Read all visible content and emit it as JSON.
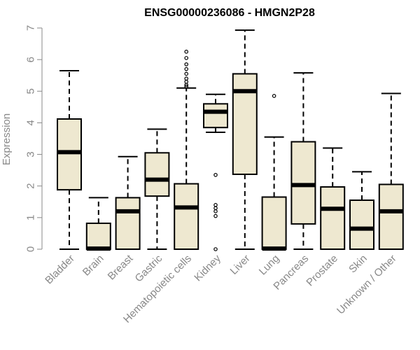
{
  "chart_data": {
    "type": "boxplot",
    "title": "ENSG00000236086 - HMGN2P28",
    "xlabel": "",
    "ylabel": "Expression",
    "ylim": [
      0,
      7
    ],
    "yticks": [
      "0",
      "1",
      "2",
      "3",
      "4",
      "5",
      "6",
      "7"
    ],
    "grid": false,
    "box_color": "#EEE8D0",
    "categories": [
      "Bladder",
      "Brain",
      "Breast",
      "Gastric",
      "Hematopoietic cells",
      "Kidney",
      "Liver",
      "Lung",
      "Pancreas",
      "Prostate",
      "Skin",
      "Unknown / Other"
    ],
    "boxes": [
      {
        "min": 0.0,
        "q1": 1.88,
        "median": 3.07,
        "q3": 4.12,
        "max": 5.65,
        "outliers": []
      },
      {
        "min": 0.0,
        "q1": 0.0,
        "median": 0.02,
        "q3": 0.82,
        "max": 1.63,
        "outliers": []
      },
      {
        "min": 0.0,
        "q1": 0.0,
        "median": 1.2,
        "q3": 1.63,
        "max": 2.93,
        "outliers": []
      },
      {
        "min": 0.0,
        "q1": 1.68,
        "median": 2.2,
        "q3": 3.05,
        "max": 3.8,
        "outliers": []
      },
      {
        "min": 0.0,
        "q1": 0.0,
        "median": 1.32,
        "q3": 2.07,
        "max": 5.1,
        "outliers": [
          5.15,
          5.2,
          5.3,
          5.4,
          5.55,
          5.7,
          5.85,
          6.05,
          6.25
        ]
      },
      {
        "min": 3.7,
        "q1": 3.85,
        "median": 4.35,
        "q3": 4.6,
        "max": 4.9,
        "outliers": [
          0.0,
          1.05,
          1.2,
          1.3,
          1.4,
          2.35
        ]
      },
      {
        "min": 0.0,
        "q1": 2.37,
        "median": 5.0,
        "q3": 5.55,
        "max": 6.93,
        "outliers": []
      },
      {
        "min": 0.0,
        "q1": 0.0,
        "median": 0.02,
        "q3": 1.65,
        "max": 3.55,
        "outliers": [
          4.85
        ]
      },
      {
        "min": 0.0,
        "q1": 0.8,
        "median": 2.03,
        "q3": 3.4,
        "max": 5.58,
        "outliers": []
      },
      {
        "min": 0.0,
        "q1": 0.0,
        "median": 1.28,
        "q3": 1.97,
        "max": 3.2,
        "outliers": []
      },
      {
        "min": 0.0,
        "q1": 0.0,
        "median": 0.65,
        "q3": 1.55,
        "max": 2.45,
        "outliers": []
      },
      {
        "min": 0.0,
        "q1": 0.0,
        "median": 1.2,
        "q3": 2.05,
        "max": 4.93,
        "outliers": []
      }
    ]
  }
}
